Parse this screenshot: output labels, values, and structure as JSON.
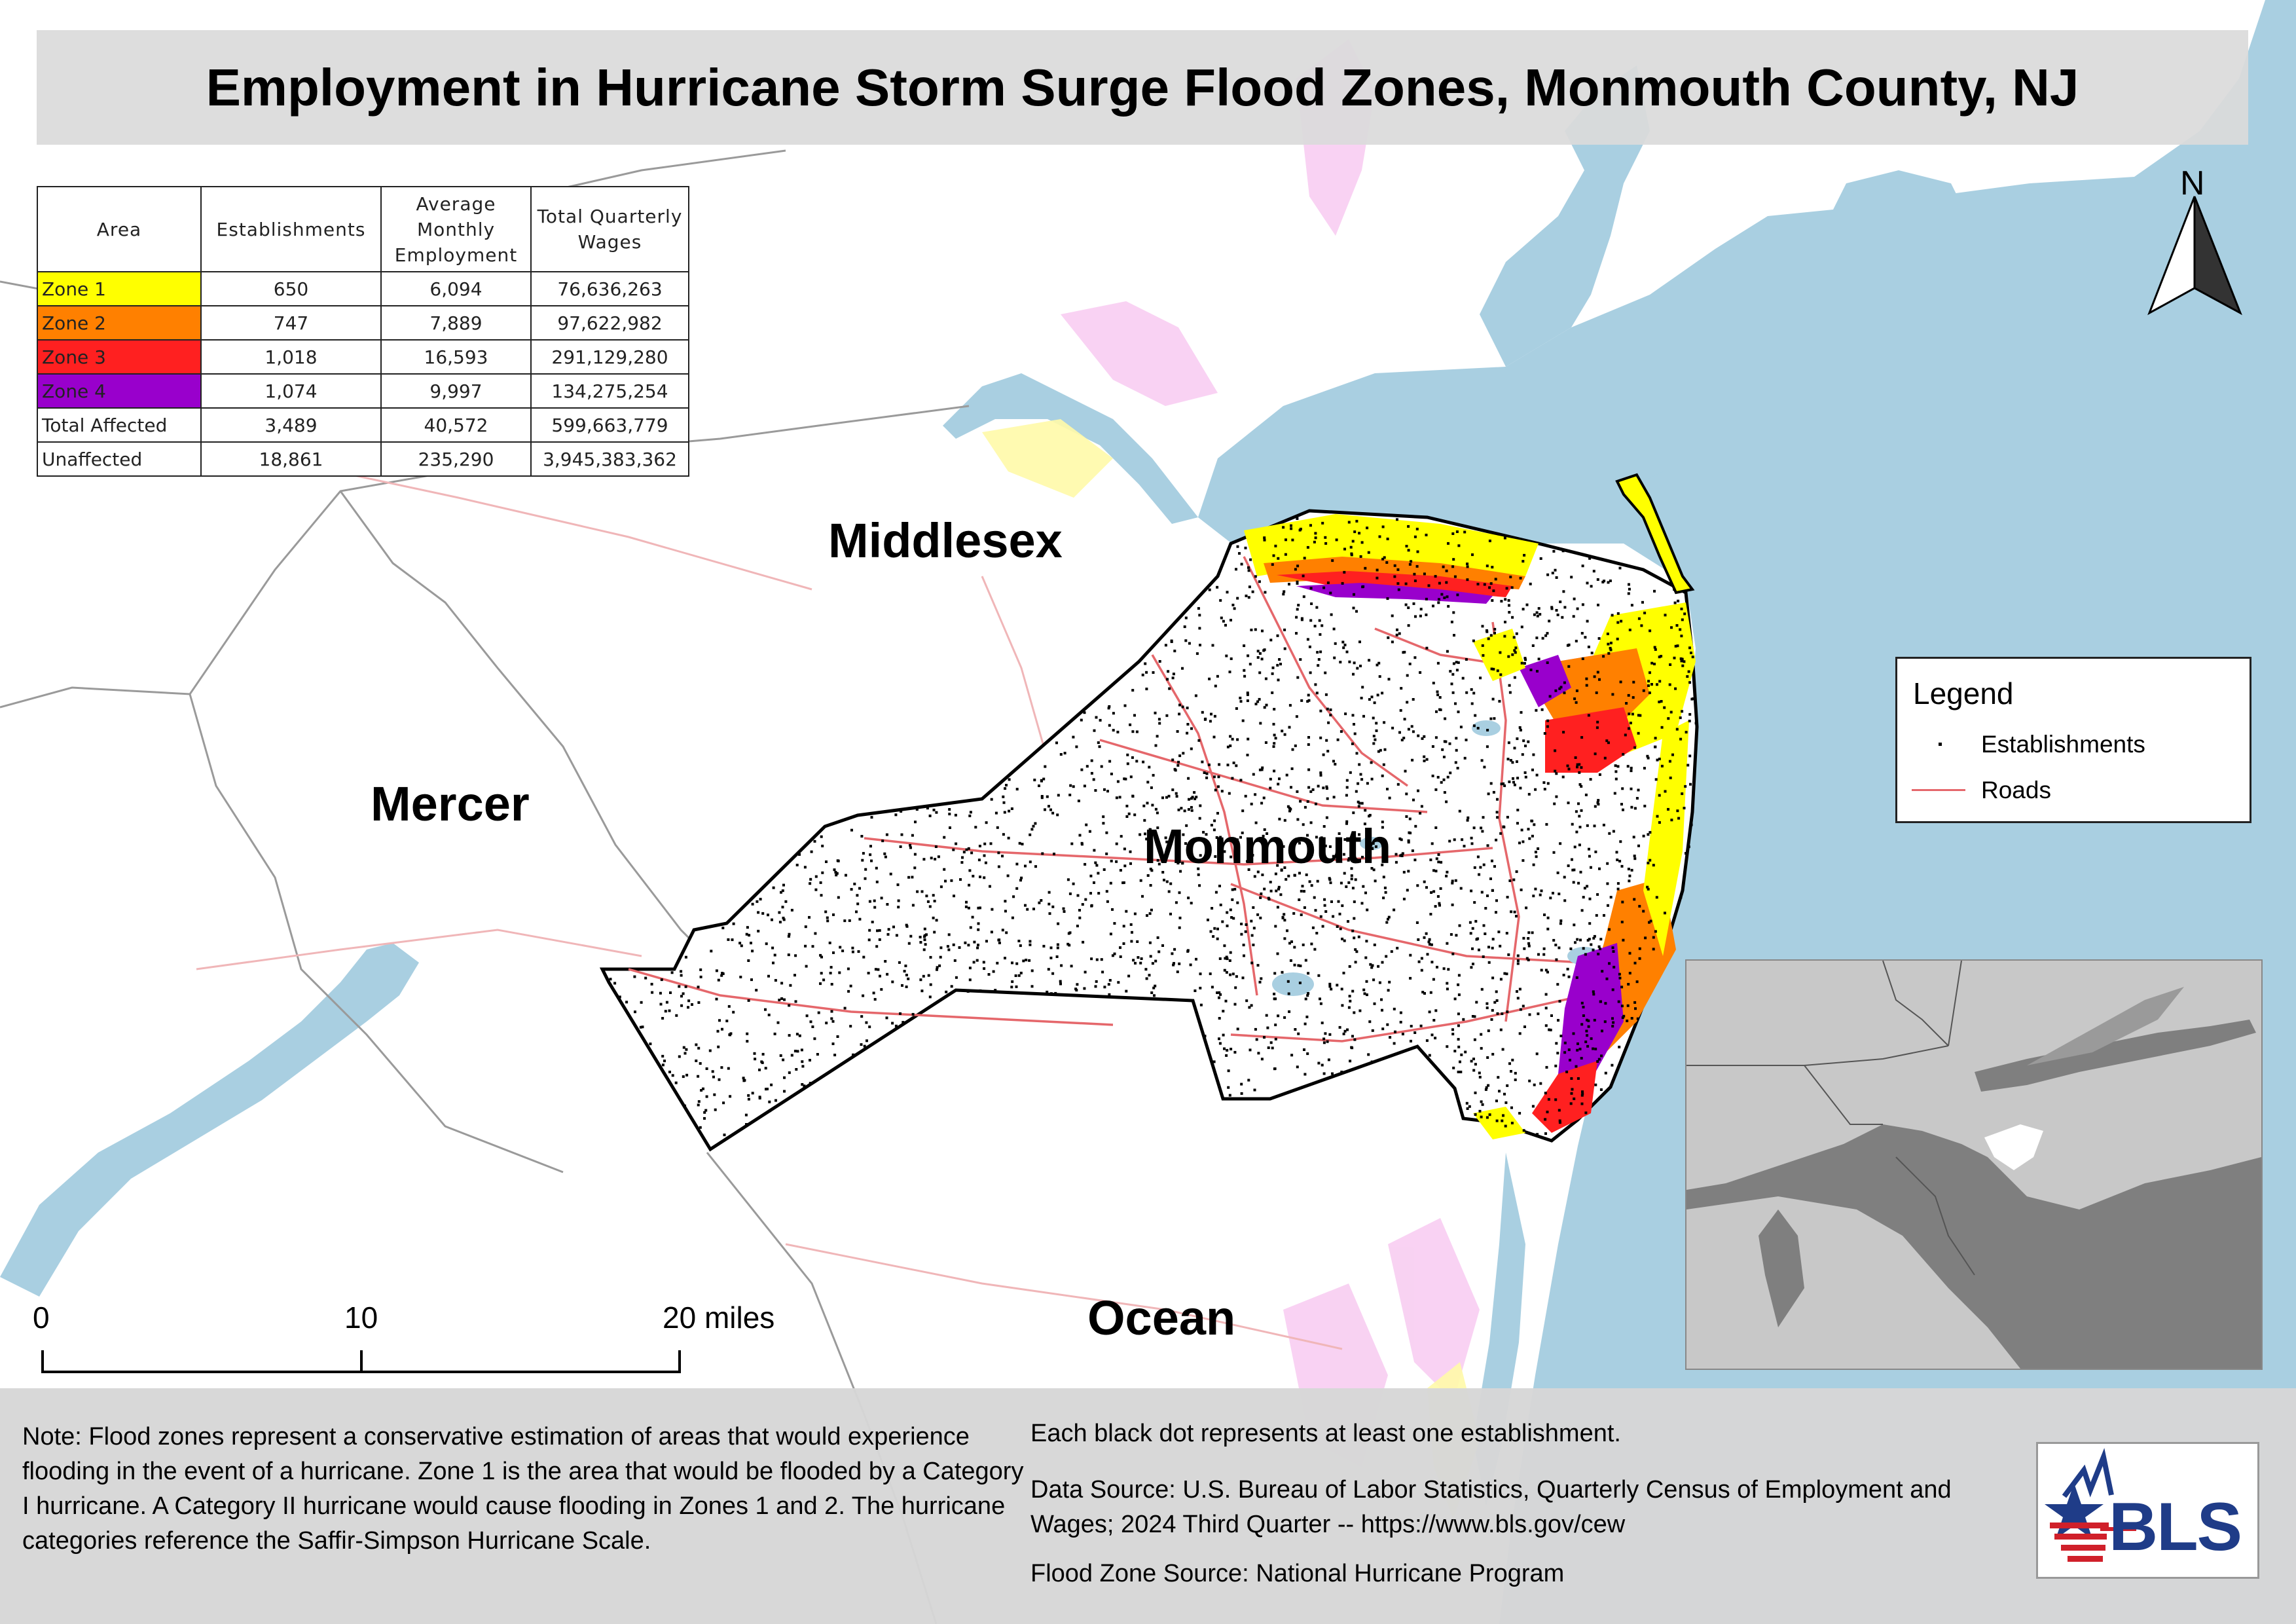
{
  "title": "Employment in Hurricane Storm Surge Flood Zones, Monmouth County, NJ",
  "table": {
    "headers": [
      "Area",
      "Establishments",
      "Average Monthly Employment",
      "Total Quarterly Wages"
    ],
    "rows": [
      {
        "area": "Zone 1",
        "color": "#ffff00",
        "establishments": "650",
        "employment": "6,094",
        "wages": "76,636,263"
      },
      {
        "area": "Zone 2",
        "color": "#ff8000",
        "establishments": "747",
        "employment": "7,889",
        "wages": "97,622,982"
      },
      {
        "area": "Zone 3",
        "color": "#ff2020",
        "establishments": "1,018",
        "employment": "16,593",
        "wages": "291,129,280"
      },
      {
        "area": "Zone 4",
        "color": "#9900cc",
        "establishments": "1,074",
        "employment": "9,997",
        "wages": "134,275,254"
      },
      {
        "area": "Total Affected",
        "color": "#ffffff",
        "establishments": "3,489",
        "employment": "40,572",
        "wages": "599,663,779"
      },
      {
        "area": "Unaffected",
        "color": "#ffffff",
        "establishments": "18,861",
        "employment": "235,290",
        "wages": "3,945,383,362"
      }
    ]
  },
  "map": {
    "counties": {
      "middlesex": "Middlesex",
      "mercer": "Mercer",
      "monmouth": "Monmouth",
      "ocean": "Ocean"
    },
    "water_color": "#a9cfe1",
    "road_color": "#e5676b",
    "land_color": "#ffffff"
  },
  "legend": {
    "title": "Legend",
    "items": [
      {
        "label": "Establishments",
        "icon": "dot-symbol"
      },
      {
        "label": "Roads",
        "icon": "line-symbol"
      }
    ]
  },
  "north_arrow": {
    "label": "N"
  },
  "scale_bar": {
    "labels": [
      "0",
      "10",
      "20 miles"
    ]
  },
  "footer": {
    "note": "Note: Flood zones represent a conservative estimation of areas that would experience flooding in the event of a hurricane. Zone 1 is the area that would be flooded by a Category I hurricane. A Category II hurricane would cause flooding in Zones 1 and 2. The hurricane categories reference the Saffir-Simpson Hurricane Scale.",
    "dot_note": "Each black dot represents at least one establishment.",
    "data_source": "Data Source: U.S. Bureau of Labor Statistics, Quarterly Census of Employment and Wages; 2024 Third Quarter -- https://www.bls.gov/cew",
    "flood_source": "Flood Zone Source: National Hurricane Program"
  },
  "logo": {
    "text": "BLS",
    "colors": {
      "blue": "#1f3c88",
      "red": "#d0202a"
    }
  }
}
